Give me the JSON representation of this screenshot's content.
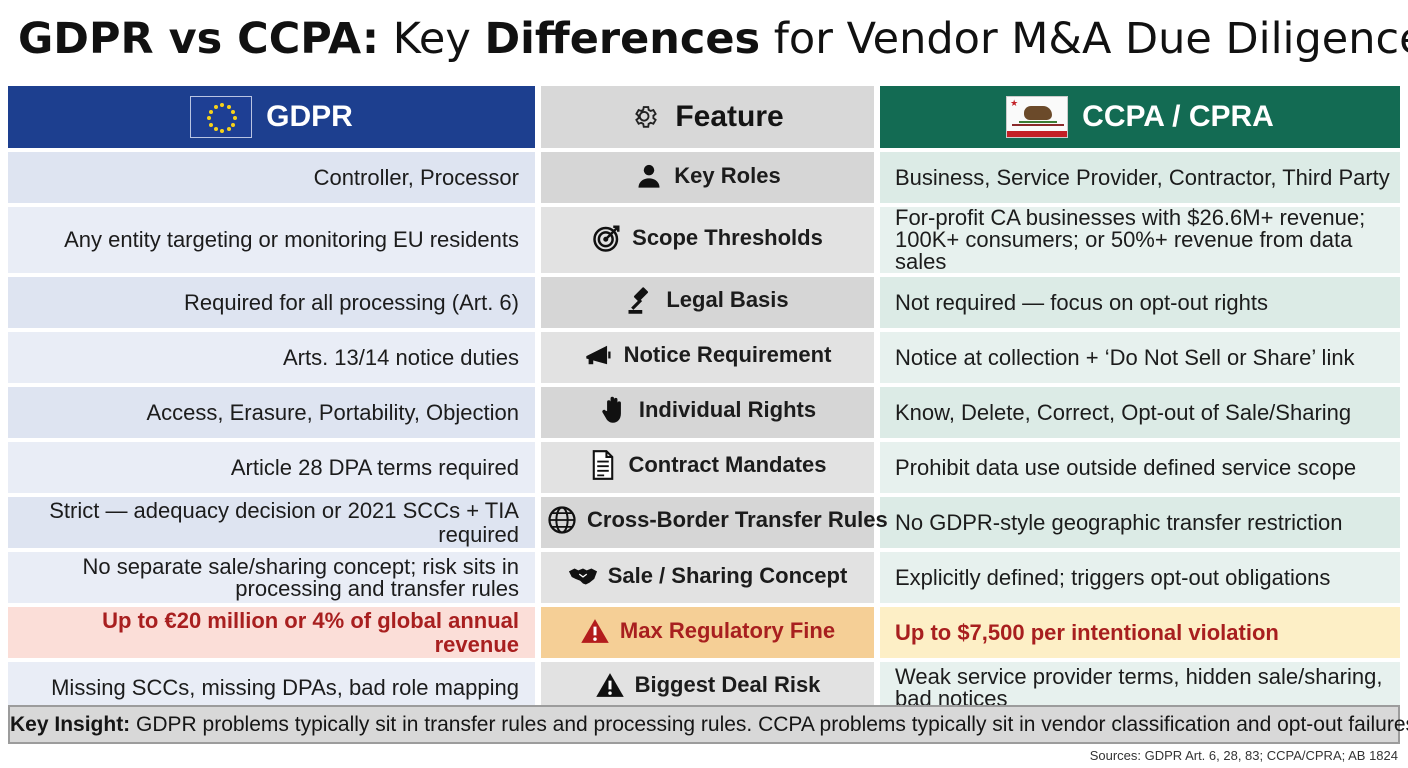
{
  "title": {
    "bold_part": "GDPR vs CCPA:",
    "part2": " Key ",
    "bold_part2": "Differences",
    "part3": " for Vendor M&A Due Diligence"
  },
  "headers": {
    "gdpr": "GDPR",
    "feature": "Feature",
    "ccpa": "CCPA / CPRA"
  },
  "rows": [
    {
      "gdpr": "Controller, Processor",
      "feature": "Key Roles",
      "icon": "person-icon",
      "ccpa": "Business, Service Provider, Contractor, Third Party"
    },
    {
      "gdpr": "Any entity targeting or monitoring EU residents",
      "feature": "Scope Thresholds",
      "icon": "target-icon",
      "ccpa": "For-profit CA businesses with $26.6M+ revenue; 100K+ consumers; or 50%+ revenue from data sales"
    },
    {
      "gdpr": "Required for all processing (Art. 6)",
      "feature": "Legal Basis",
      "icon": "gavel-icon",
      "ccpa": "Not required — focus on opt-out rights"
    },
    {
      "gdpr": "Arts. 13/14 notice duties",
      "feature": "Notice Requirement",
      "icon": "megaphone-icon",
      "ccpa": "Notice at collection + ‘Do Not Sell or Share’ link"
    },
    {
      "gdpr": "Access, Erasure, Portability, Objection",
      "feature": "Individual Rights",
      "icon": "hand-icon",
      "ccpa": "Know, Delete, Correct, Opt-out of Sale/Sharing"
    },
    {
      "gdpr": "Article 28 DPA terms required",
      "feature": "Contract Mandates",
      "icon": "document-icon",
      "ccpa": "Prohibit data use outside defined service scope"
    },
    {
      "gdpr": "Strict — adequacy decision or 2021 SCCs + TIA required",
      "feature": "Cross-Border Transfer Rules",
      "icon": "globe-icon",
      "ccpa": "No GDPR-style geographic transfer restriction"
    },
    {
      "gdpr": "No separate sale/sharing concept; risk sits in processing and transfer rules",
      "feature": "Sale / Sharing Concept",
      "icon": "handshake-icon",
      "ccpa": "Explicitly defined; triggers opt-out obligations"
    },
    {
      "gdpr": "Up to €20 million or 4% of global annual revenue",
      "feature": "Max Regulatory Fine",
      "icon": "warning-icon",
      "ccpa": "Up to $7,500 per intentional violation"
    },
    {
      "gdpr": "Missing SCCs, missing DPAs, bad role mapping",
      "feature": "Biggest Deal Risk",
      "icon": "warning-icon",
      "ccpa": "Weak service provider terms, hidden sale/sharing, bad notices"
    }
  ],
  "insight": {
    "label": "Key Insight:",
    "text": " GDPR problems typically sit in transfer rules and processing rules. CCPA problems typically sit in vendor classification and opt-out failures."
  },
  "sources": "Sources: GDPR Art. 6, 28, 83; CCPA/CPRA; AB 1824",
  "colors": {
    "gdpr_header": "#1d3f8f",
    "ccpa_header": "#136b53",
    "fine_text": "#a81f1f"
  }
}
